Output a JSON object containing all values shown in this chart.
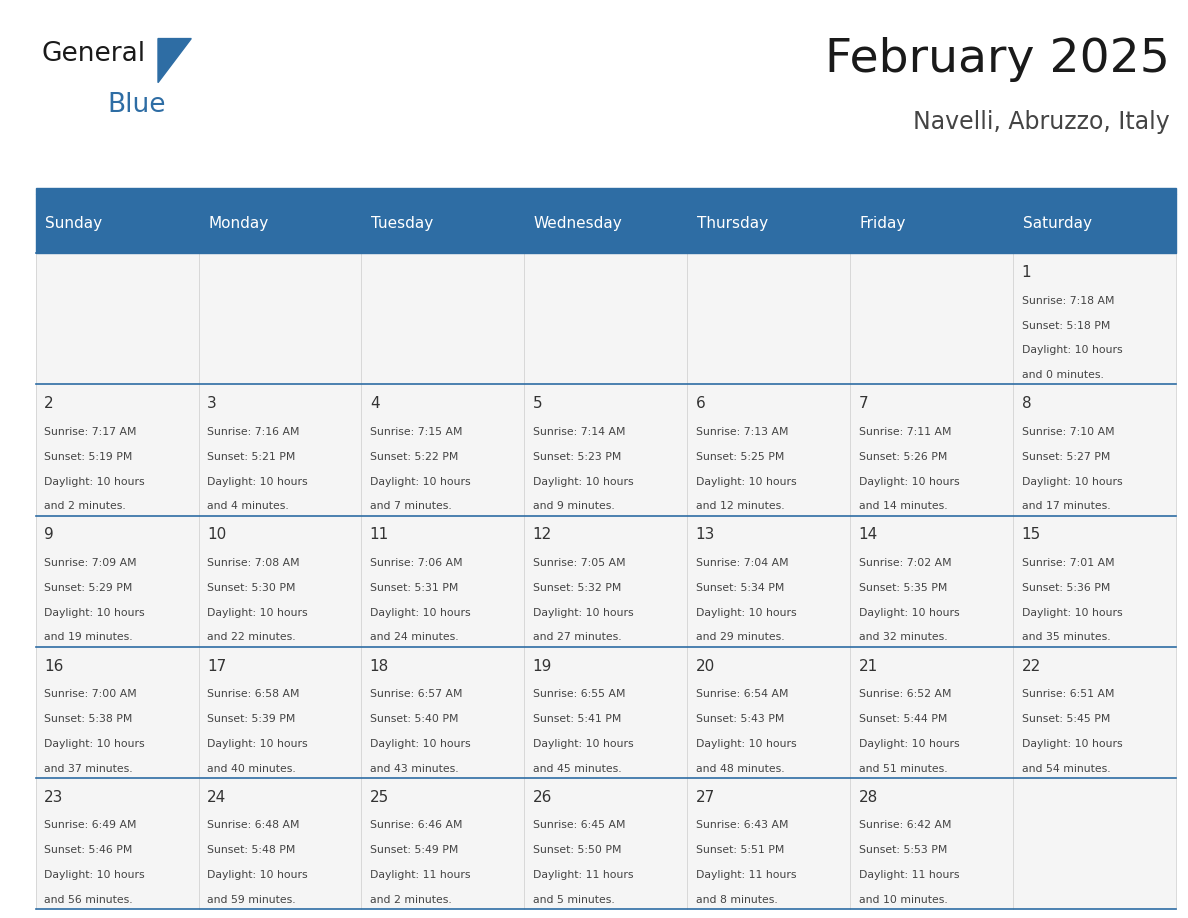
{
  "title": "February 2025",
  "subtitle": "Navelli, Abruzzo, Italy",
  "header_bg": "#2E6DA4",
  "header_text": "#FFFFFF",
  "line_color": "#2E6DA4",
  "cell_bg": "#F5F5F5",
  "days_of_week": [
    "Sunday",
    "Monday",
    "Tuesday",
    "Wednesday",
    "Thursday",
    "Friday",
    "Saturday"
  ],
  "calendar": [
    [
      null,
      null,
      null,
      null,
      null,
      null,
      {
        "day": "1",
        "sunrise": "7:18 AM",
        "sunset": "5:18 PM",
        "daylight1": "10 hours",
        "daylight2": "and 0 minutes."
      }
    ],
    [
      {
        "day": "2",
        "sunrise": "7:17 AM",
        "sunset": "5:19 PM",
        "daylight1": "10 hours",
        "daylight2": "and 2 minutes."
      },
      {
        "day": "3",
        "sunrise": "7:16 AM",
        "sunset": "5:21 PM",
        "daylight1": "10 hours",
        "daylight2": "and 4 minutes."
      },
      {
        "day": "4",
        "sunrise": "7:15 AM",
        "sunset": "5:22 PM",
        "daylight1": "10 hours",
        "daylight2": "and 7 minutes."
      },
      {
        "day": "5",
        "sunrise": "7:14 AM",
        "sunset": "5:23 PM",
        "daylight1": "10 hours",
        "daylight2": "and 9 minutes."
      },
      {
        "day": "6",
        "sunrise": "7:13 AM",
        "sunset": "5:25 PM",
        "daylight1": "10 hours",
        "daylight2": "and 12 minutes."
      },
      {
        "day": "7",
        "sunrise": "7:11 AM",
        "sunset": "5:26 PM",
        "daylight1": "10 hours",
        "daylight2": "and 14 minutes."
      },
      {
        "day": "8",
        "sunrise": "7:10 AM",
        "sunset": "5:27 PM",
        "daylight1": "10 hours",
        "daylight2": "and 17 minutes."
      }
    ],
    [
      {
        "day": "9",
        "sunrise": "7:09 AM",
        "sunset": "5:29 PM",
        "daylight1": "10 hours",
        "daylight2": "and 19 minutes."
      },
      {
        "day": "10",
        "sunrise": "7:08 AM",
        "sunset": "5:30 PM",
        "daylight1": "10 hours",
        "daylight2": "and 22 minutes."
      },
      {
        "day": "11",
        "sunrise": "7:06 AM",
        "sunset": "5:31 PM",
        "daylight1": "10 hours",
        "daylight2": "and 24 minutes."
      },
      {
        "day": "12",
        "sunrise": "7:05 AM",
        "sunset": "5:32 PM",
        "daylight1": "10 hours",
        "daylight2": "and 27 minutes."
      },
      {
        "day": "13",
        "sunrise": "7:04 AM",
        "sunset": "5:34 PM",
        "daylight1": "10 hours",
        "daylight2": "and 29 minutes."
      },
      {
        "day": "14",
        "sunrise": "7:02 AM",
        "sunset": "5:35 PM",
        "daylight1": "10 hours",
        "daylight2": "and 32 minutes."
      },
      {
        "day": "15",
        "sunrise": "7:01 AM",
        "sunset": "5:36 PM",
        "daylight1": "10 hours",
        "daylight2": "and 35 minutes."
      }
    ],
    [
      {
        "day": "16",
        "sunrise": "7:00 AM",
        "sunset": "5:38 PM",
        "daylight1": "10 hours",
        "daylight2": "and 37 minutes."
      },
      {
        "day": "17",
        "sunrise": "6:58 AM",
        "sunset": "5:39 PM",
        "daylight1": "10 hours",
        "daylight2": "and 40 minutes."
      },
      {
        "day": "18",
        "sunrise": "6:57 AM",
        "sunset": "5:40 PM",
        "daylight1": "10 hours",
        "daylight2": "and 43 minutes."
      },
      {
        "day": "19",
        "sunrise": "6:55 AM",
        "sunset": "5:41 PM",
        "daylight1": "10 hours",
        "daylight2": "and 45 minutes."
      },
      {
        "day": "20",
        "sunrise": "6:54 AM",
        "sunset": "5:43 PM",
        "daylight1": "10 hours",
        "daylight2": "and 48 minutes."
      },
      {
        "day": "21",
        "sunrise": "6:52 AM",
        "sunset": "5:44 PM",
        "daylight1": "10 hours",
        "daylight2": "and 51 minutes."
      },
      {
        "day": "22",
        "sunrise": "6:51 AM",
        "sunset": "5:45 PM",
        "daylight1": "10 hours",
        "daylight2": "and 54 minutes."
      }
    ],
    [
      {
        "day": "23",
        "sunrise": "6:49 AM",
        "sunset": "5:46 PM",
        "daylight1": "10 hours",
        "daylight2": "and 56 minutes."
      },
      {
        "day": "24",
        "sunrise": "6:48 AM",
        "sunset": "5:48 PM",
        "daylight1": "10 hours",
        "daylight2": "and 59 minutes."
      },
      {
        "day": "25",
        "sunrise": "6:46 AM",
        "sunset": "5:49 PM",
        "daylight1": "11 hours",
        "daylight2": "and 2 minutes."
      },
      {
        "day": "26",
        "sunrise": "6:45 AM",
        "sunset": "5:50 PM",
        "daylight1": "11 hours",
        "daylight2": "and 5 minutes."
      },
      {
        "day": "27",
        "sunrise": "6:43 AM",
        "sunset": "5:51 PM",
        "daylight1": "11 hours",
        "daylight2": "and 8 minutes."
      },
      {
        "day": "28",
        "sunrise": "6:42 AM",
        "sunset": "5:53 PM",
        "daylight1": "11 hours",
        "daylight2": "and 10 minutes."
      },
      null
    ]
  ],
  "logo_text1": "General",
  "logo_text2": "Blue",
  "logo_text1_color": "#1a1a1a",
  "logo_text2_color": "#2E6DA4",
  "logo_triangle_color": "#2E6DA4"
}
